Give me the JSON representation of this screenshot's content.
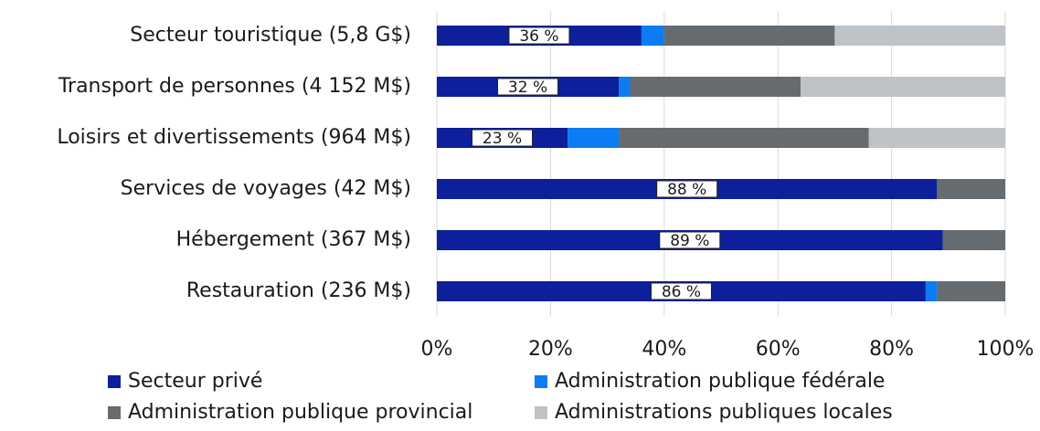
{
  "chart_data": {
    "type": "stacked_barh",
    "categories": [
      "Secteur touristique (5,8 G$)",
      "Transport de personnes (4 152 M$)",
      "Loisirs et divertissements (964 M$)",
      "Services de voyages (42 M$)",
      "Hébergement (367 M$)",
      "Restauration (236 M$)"
    ],
    "series": [
      {
        "name": "Secteur privé",
        "color": "#0d1f9b",
        "values": [
          36,
          32,
          23,
          88,
          89,
          86
        ],
        "value_labels": [
          "36 %",
          "32 %",
          "23 %",
          "88 %",
          "89 %",
          "86 %"
        ]
      },
      {
        "name": "Administration publique fédérale",
        "color": "#0b7cf2",
        "values": [
          4,
          2,
          9,
          0,
          0,
          2
        ]
      },
      {
        "name": "Administration publique provincial",
        "color": "#656b6f",
        "values": [
          30,
          30,
          44,
          12,
          11,
          12
        ]
      },
      {
        "name": "Administrations publiques locales",
        "color": "#bdc3c7",
        "values": [
          30,
          36,
          24,
          0,
          0,
          0
        ]
      }
    ],
    "xlim": [
      0,
      100
    ],
    "xticks": [
      {
        "value": 0,
        "label": "0%"
      },
      {
        "value": 20,
        "label": "20%"
      },
      {
        "value": 40,
        "label": "40%"
      },
      {
        "value": 60,
        "label": "60%"
      },
      {
        "value": 80,
        "label": "80%"
      },
      {
        "value": 100,
        "label": "100%"
      }
    ],
    "grid": true
  }
}
